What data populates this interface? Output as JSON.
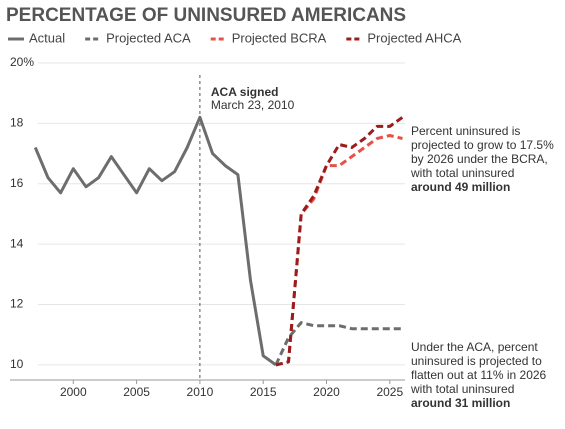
{
  "chart_data": {
    "type": "line",
    "title": "PERCENTAGE OF UNINSURED AMERICANS",
    "x": [
      1997,
      1998,
      1999,
      2000,
      2001,
      2002,
      2003,
      2004,
      2005,
      2006,
      2007,
      2008,
      2009,
      2010,
      2011,
      2012,
      2013,
      2014,
      2015,
      2016,
      2017,
      2018,
      2019,
      2020,
      2021,
      2022,
      2023,
      2024,
      2025,
      2026
    ],
    "series": [
      {
        "name": "Actual",
        "color": "#6d6d6d",
        "dashed": false,
        "values": [
          17.2,
          16.2,
          15.7,
          16.5,
          15.9,
          16.2,
          16.9,
          16.3,
          15.7,
          16.5,
          16.1,
          16.4,
          17.2,
          18.2,
          17.0,
          16.6,
          16.3,
          12.8,
          10.3,
          10.0,
          null,
          null,
          null,
          null,
          null,
          null,
          null,
          null,
          null,
          null
        ]
      },
      {
        "name": "Projected ACA",
        "color": "#6d6d6d",
        "dashed": true,
        "values": [
          null,
          null,
          null,
          null,
          null,
          null,
          null,
          null,
          null,
          null,
          null,
          null,
          null,
          null,
          null,
          null,
          null,
          null,
          null,
          10.0,
          10.9,
          11.4,
          11.3,
          11.3,
          11.3,
          11.2,
          11.2,
          11.2,
          11.2,
          11.2
        ]
      },
      {
        "name": "Projected BCRA",
        "color": "#e8504a",
        "dashed": true,
        "values": [
          null,
          null,
          null,
          null,
          null,
          null,
          null,
          null,
          null,
          null,
          null,
          null,
          null,
          null,
          null,
          null,
          null,
          null,
          null,
          10.0,
          10.1,
          15.0,
          15.5,
          16.6,
          16.6,
          16.9,
          17.2,
          17.5,
          17.6,
          17.5
        ]
      },
      {
        "name": "Projected AHCA",
        "color": "#9b1c1c",
        "dashed": true,
        "values": [
          null,
          null,
          null,
          null,
          null,
          null,
          null,
          null,
          null,
          null,
          null,
          null,
          null,
          null,
          null,
          null,
          null,
          null,
          null,
          10.0,
          10.1,
          15.0,
          15.6,
          16.6,
          17.3,
          17.2,
          17.5,
          17.9,
          17.9,
          18.2
        ]
      }
    ],
    "xlim": [
      1995,
      2026.2
    ],
    "xticks": [
      2000,
      2005,
      2010,
      2015,
      2020,
      2025
    ],
    "ylim": [
      9.5,
      20
    ],
    "yticks": [
      10,
      12,
      14,
      16,
      {
        "value": 18,
        "label": "18"
      },
      {
        "value": 20,
        "label": "20%"
      }
    ],
    "grid": true,
    "event": {
      "x": 2010,
      "label": "ACA signed",
      "date": "March 23, 2010"
    },
    "annotations": [
      {
        "lines": [
          "Percent uninsured is",
          "projected to grow to 17.5%",
          "by 2026 under the BCRA,",
          "with total uninsured"
        ],
        "bold": "around 49 million"
      },
      {
        "lines": [
          "Under the ACA, percent",
          "uninsured is projected to",
          "flatten out at 11% in 2026",
          "with total uninsured"
        ],
        "bold": "around 31 million"
      }
    ]
  }
}
